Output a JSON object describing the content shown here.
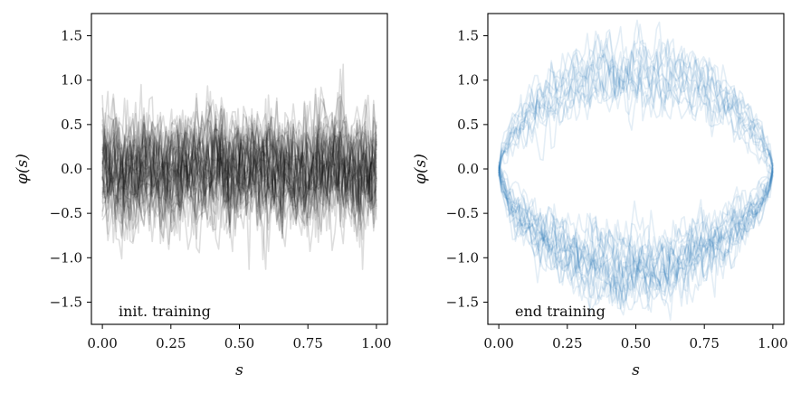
{
  "figure": {
    "background": "#ffffff"
  },
  "chart_data": [
    {
      "type": "line",
      "panel": "left",
      "description_color": "#000000",
      "series_color": "#000000",
      "series_alpha": 0.13,
      "title": "",
      "xlabel": "s",
      "ylabel": "φ(s)",
      "xlim": [
        -0.04,
        1.04
      ],
      "ylim": [
        -1.75,
        1.75
      ],
      "xticks": [
        0.0,
        0.25,
        0.5,
        0.75,
        1.0
      ],
      "xtick_labels": [
        "0.00",
        "0.25",
        "0.50",
        "0.75",
        "1.00"
      ],
      "yticks": [
        1.5,
        1.0,
        0.5,
        0.0,
        -0.5,
        -1.0,
        -1.5
      ],
      "ytick_labels": [
        "1.5",
        "1.0",
        "0.5",
        "0.0",
        "−0.5",
        "−1.0",
        "−1.5"
      ],
      "annotation": "init. training",
      "grid": false,
      "legend": "none",
      "sample_paths": {
        "count": 40,
        "points_per_path": 100,
        "x_range": [
          0.0,
          1.0
        ],
        "mean": 0.0,
        "typical_spread": 0.3,
        "max_value": 1.28,
        "min_value": -1.13
      }
    },
    {
      "type": "line",
      "panel": "right",
      "series_color": "#1f77b4",
      "series_alpha": 0.12,
      "title": "",
      "xlabel": "s",
      "ylabel": "φ(s)",
      "xlim": [
        -0.04,
        1.04
      ],
      "ylim": [
        -1.75,
        1.75
      ],
      "xticks": [
        0.0,
        0.25,
        0.5,
        0.75,
        1.0
      ],
      "xtick_labels": [
        "0.00",
        "0.25",
        "0.50",
        "0.75",
        "1.00"
      ],
      "yticks": [
        1.5,
        1.0,
        0.5,
        0.0,
        -0.5,
        -1.0,
        -1.5
      ],
      "ytick_labels": [
        "1.5",
        "1.0",
        "0.5",
        "0.0",
        "−0.5",
        "−1.0",
        "−1.5"
      ],
      "annotation": "end training",
      "annotation_color": "#1f77b4",
      "grid": false,
      "legend": "none",
      "sample_paths": {
        "count": 36,
        "points_per_path": 100,
        "x_range": [
          0.0,
          1.0
        ],
        "start_value": 0.0,
        "end_value": 0.0,
        "upper_branch_peak": 1.0,
        "lower_branch_trough": -1.05,
        "upper_branch_share": 0.3,
        "noise": 0.12
      }
    }
  ]
}
